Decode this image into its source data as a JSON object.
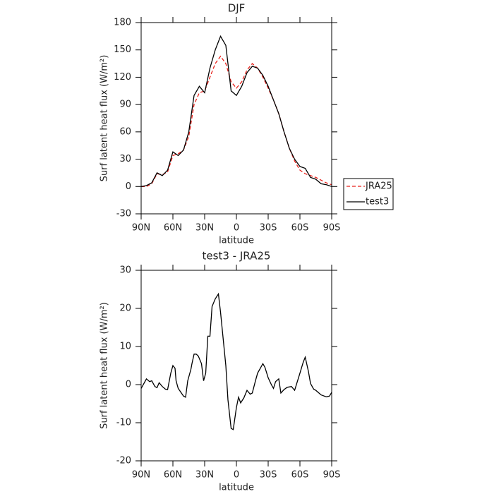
{
  "chart_data": [
    {
      "type": "line",
      "title": "DJF",
      "xlabel": "latitude",
      "ylabel": "Surf latent heat flux (W/m²)",
      "x": [
        90,
        85,
        80,
        75,
        70,
        65,
        60,
        55,
        50,
        45,
        40,
        35,
        30,
        25,
        20,
        15,
        10,
        5,
        0,
        -5,
        -10,
        -15,
        -20,
        -25,
        -30,
        -35,
        -40,
        -45,
        -50,
        -55,
        -60,
        -65,
        -70,
        -75,
        -80,
        -85,
        -90
      ],
      "series": [
        {
          "name": "JRA25",
          "color": "#e8201a",
          "dash": true,
          "values": [
            0,
            0,
            3,
            14,
            13,
            16,
            34,
            36,
            40,
            55,
            90,
            103,
            105,
            120,
            135,
            143,
            135,
            115,
            108,
            115,
            128,
            135,
            130,
            120,
            108,
            95,
            80,
            60,
            42,
            28,
            18,
            14,
            12,
            10,
            7,
            4,
            2
          ]
        },
        {
          "name": "test3",
          "color": "#000000",
          "dash": false,
          "values": [
            0,
            1,
            4,
            15,
            12,
            18,
            38,
            34,
            40,
            60,
            100,
            110,
            103,
            130,
            150,
            165,
            155,
            105,
            100,
            110,
            125,
            132,
            130,
            122,
            110,
            95,
            80,
            60,
            42,
            30,
            22,
            20,
            10,
            8,
            3,
            2,
            0
          ]
        }
      ],
      "xlim": [
        90,
        -90
      ],
      "xticks": [
        {
          "value": 90,
          "label": "90N"
        },
        {
          "value": 60,
          "label": "60N"
        },
        {
          "value": 30,
          "label": "30N"
        },
        0,
        {
          "value": -30,
          "label": "30S"
        },
        {
          "value": -60,
          "label": "60S"
        },
        {
          "value": -90,
          "label": "90S"
        }
      ],
      "ylim": [
        -30,
        180
      ],
      "yticks": [
        -30,
        0,
        30,
        60,
        90,
        120,
        150,
        180
      ],
      "legend": "right"
    },
    {
      "type": "line",
      "title": "test3 - JRA25",
      "xlabel": "latitude",
      "ylabel": "Surf latent heat flux (W/m²)",
      "x": [
        90,
        85,
        82,
        80,
        77,
        75,
        73,
        70,
        67,
        65,
        62,
        60,
        58,
        57,
        55,
        50,
        48,
        46,
        43,
        42,
        40,
        38,
        36,
        33,
        31,
        29,
        27,
        25,
        23,
        20,
        17,
        15,
        10,
        8,
        5,
        3,
        0,
        -2,
        -4,
        -7,
        -10,
        -13,
        -15,
        -18,
        -20,
        -25,
        -27,
        -30,
        -33,
        -35,
        -37,
        -40,
        -42,
        -45,
        -48,
        -52,
        -55,
        -60,
        -63,
        -65,
        -68,
        -70,
        -73,
        -75,
        -80,
        -85,
        -88,
        -90
      ],
      "series": [
        {
          "name": "test3 - JRA25",
          "color": "#000000",
          "dash": false,
          "values": [
            -1,
            1.5,
            0.8,
            1,
            -0.5,
            -0.8,
            0.5,
            -0.5,
            -1.2,
            -1.3,
            3,
            5,
            4.3,
            1,
            -1,
            -3,
            -3.3,
            1,
            4,
            5.5,
            8,
            8,
            7.5,
            5.5,
            1,
            3,
            12.7,
            12.7,
            20.5,
            22.5,
            23.8,
            19,
            5,
            -4,
            -11.5,
            -11.8,
            -6,
            -3.3,
            -4.8,
            -3.5,
            -1.5,
            -2.5,
            -2.2,
            1,
            3,
            5.5,
            4.5,
            1.8,
            0,
            -1,
            0.8,
            1.5,
            -2.2,
            -1.3,
            -0.7,
            -0.5,
            -1.5,
            3,
            5.8,
            7.2,
            3.5,
            0.3,
            -1.2,
            -1.5,
            -2.7,
            -3.2,
            -3,
            -2
          ]
        }
      ],
      "xlim": [
        90,
        -90
      ],
      "xticks": [
        {
          "value": 90,
          "label": "90N"
        },
        {
          "value": 60,
          "label": "60N"
        },
        {
          "value": 30,
          "label": "30N"
        },
        0,
        {
          "value": -30,
          "label": "30S"
        },
        {
          "value": -60,
          "label": "60S"
        },
        {
          "value": -90,
          "label": "90S"
        }
      ],
      "ylim": [
        -20,
        30
      ],
      "yticks": [
        -20,
        -10,
        0,
        10,
        20,
        30
      ]
    }
  ]
}
